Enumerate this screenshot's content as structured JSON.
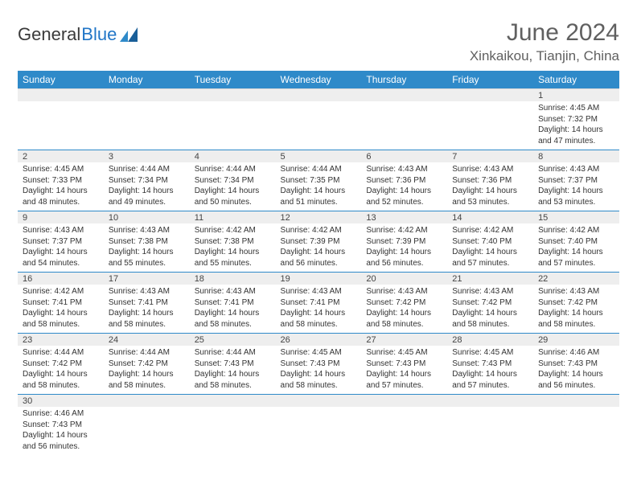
{
  "logo": {
    "text1": "General",
    "text2": "Blue",
    "accent_color": "#2f8ac9"
  },
  "title": "June 2024",
  "location": "Xinkaikou, Tianjin, China",
  "day_headers": [
    "Sunday",
    "Monday",
    "Tuesday",
    "Wednesday",
    "Thursday",
    "Friday",
    "Saturday"
  ],
  "colors": {
    "header_bg": "#2f8ac9",
    "header_fg": "#ffffff",
    "daynum_bg": "#eeeeee",
    "row_border": "#2f8ac9",
    "text": "#333333",
    "title_color": "#606060"
  },
  "weeks": [
    [
      null,
      null,
      null,
      null,
      null,
      null,
      {
        "n": "1",
        "sr": "Sunrise: 4:45 AM",
        "ss": "Sunset: 7:32 PM",
        "d1": "Daylight: 14 hours",
        "d2": "and 47 minutes."
      }
    ],
    [
      {
        "n": "2",
        "sr": "Sunrise: 4:45 AM",
        "ss": "Sunset: 7:33 PM",
        "d1": "Daylight: 14 hours",
        "d2": "and 48 minutes."
      },
      {
        "n": "3",
        "sr": "Sunrise: 4:44 AM",
        "ss": "Sunset: 7:34 PM",
        "d1": "Daylight: 14 hours",
        "d2": "and 49 minutes."
      },
      {
        "n": "4",
        "sr": "Sunrise: 4:44 AM",
        "ss": "Sunset: 7:34 PM",
        "d1": "Daylight: 14 hours",
        "d2": "and 50 minutes."
      },
      {
        "n": "5",
        "sr": "Sunrise: 4:44 AM",
        "ss": "Sunset: 7:35 PM",
        "d1": "Daylight: 14 hours",
        "d2": "and 51 minutes."
      },
      {
        "n": "6",
        "sr": "Sunrise: 4:43 AM",
        "ss": "Sunset: 7:36 PM",
        "d1": "Daylight: 14 hours",
        "d2": "and 52 minutes."
      },
      {
        "n": "7",
        "sr": "Sunrise: 4:43 AM",
        "ss": "Sunset: 7:36 PM",
        "d1": "Daylight: 14 hours",
        "d2": "and 53 minutes."
      },
      {
        "n": "8",
        "sr": "Sunrise: 4:43 AM",
        "ss": "Sunset: 7:37 PM",
        "d1": "Daylight: 14 hours",
        "d2": "and 53 minutes."
      }
    ],
    [
      {
        "n": "9",
        "sr": "Sunrise: 4:43 AM",
        "ss": "Sunset: 7:37 PM",
        "d1": "Daylight: 14 hours",
        "d2": "and 54 minutes."
      },
      {
        "n": "10",
        "sr": "Sunrise: 4:43 AM",
        "ss": "Sunset: 7:38 PM",
        "d1": "Daylight: 14 hours",
        "d2": "and 55 minutes."
      },
      {
        "n": "11",
        "sr": "Sunrise: 4:42 AM",
        "ss": "Sunset: 7:38 PM",
        "d1": "Daylight: 14 hours",
        "d2": "and 55 minutes."
      },
      {
        "n": "12",
        "sr": "Sunrise: 4:42 AM",
        "ss": "Sunset: 7:39 PM",
        "d1": "Daylight: 14 hours",
        "d2": "and 56 minutes."
      },
      {
        "n": "13",
        "sr": "Sunrise: 4:42 AM",
        "ss": "Sunset: 7:39 PM",
        "d1": "Daylight: 14 hours",
        "d2": "and 56 minutes."
      },
      {
        "n": "14",
        "sr": "Sunrise: 4:42 AM",
        "ss": "Sunset: 7:40 PM",
        "d1": "Daylight: 14 hours",
        "d2": "and 57 minutes."
      },
      {
        "n": "15",
        "sr": "Sunrise: 4:42 AM",
        "ss": "Sunset: 7:40 PM",
        "d1": "Daylight: 14 hours",
        "d2": "and 57 minutes."
      }
    ],
    [
      {
        "n": "16",
        "sr": "Sunrise: 4:42 AM",
        "ss": "Sunset: 7:41 PM",
        "d1": "Daylight: 14 hours",
        "d2": "and 58 minutes."
      },
      {
        "n": "17",
        "sr": "Sunrise: 4:43 AM",
        "ss": "Sunset: 7:41 PM",
        "d1": "Daylight: 14 hours",
        "d2": "and 58 minutes."
      },
      {
        "n": "18",
        "sr": "Sunrise: 4:43 AM",
        "ss": "Sunset: 7:41 PM",
        "d1": "Daylight: 14 hours",
        "d2": "and 58 minutes."
      },
      {
        "n": "19",
        "sr": "Sunrise: 4:43 AM",
        "ss": "Sunset: 7:41 PM",
        "d1": "Daylight: 14 hours",
        "d2": "and 58 minutes."
      },
      {
        "n": "20",
        "sr": "Sunrise: 4:43 AM",
        "ss": "Sunset: 7:42 PM",
        "d1": "Daylight: 14 hours",
        "d2": "and 58 minutes."
      },
      {
        "n": "21",
        "sr": "Sunrise: 4:43 AM",
        "ss": "Sunset: 7:42 PM",
        "d1": "Daylight: 14 hours",
        "d2": "and 58 minutes."
      },
      {
        "n": "22",
        "sr": "Sunrise: 4:43 AM",
        "ss": "Sunset: 7:42 PM",
        "d1": "Daylight: 14 hours",
        "d2": "and 58 minutes."
      }
    ],
    [
      {
        "n": "23",
        "sr": "Sunrise: 4:44 AM",
        "ss": "Sunset: 7:42 PM",
        "d1": "Daylight: 14 hours",
        "d2": "and 58 minutes."
      },
      {
        "n": "24",
        "sr": "Sunrise: 4:44 AM",
        "ss": "Sunset: 7:42 PM",
        "d1": "Daylight: 14 hours",
        "d2": "and 58 minutes."
      },
      {
        "n": "25",
        "sr": "Sunrise: 4:44 AM",
        "ss": "Sunset: 7:43 PM",
        "d1": "Daylight: 14 hours",
        "d2": "and 58 minutes."
      },
      {
        "n": "26",
        "sr": "Sunrise: 4:45 AM",
        "ss": "Sunset: 7:43 PM",
        "d1": "Daylight: 14 hours",
        "d2": "and 58 minutes."
      },
      {
        "n": "27",
        "sr": "Sunrise: 4:45 AM",
        "ss": "Sunset: 7:43 PM",
        "d1": "Daylight: 14 hours",
        "d2": "and 57 minutes."
      },
      {
        "n": "28",
        "sr": "Sunrise: 4:45 AM",
        "ss": "Sunset: 7:43 PM",
        "d1": "Daylight: 14 hours",
        "d2": "and 57 minutes."
      },
      {
        "n": "29",
        "sr": "Sunrise: 4:46 AM",
        "ss": "Sunset: 7:43 PM",
        "d1": "Daylight: 14 hours",
        "d2": "and 56 minutes."
      }
    ],
    [
      {
        "n": "30",
        "sr": "Sunrise: 4:46 AM",
        "ss": "Sunset: 7:43 PM",
        "d1": "Daylight: 14 hours",
        "d2": "and 56 minutes."
      },
      null,
      null,
      null,
      null,
      null,
      null
    ]
  ]
}
